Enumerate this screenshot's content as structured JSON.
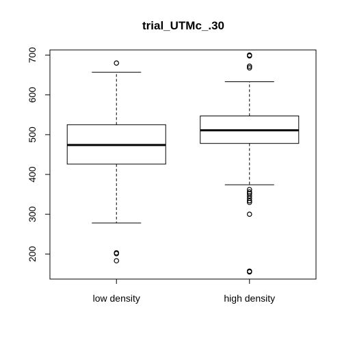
{
  "chart_data": {
    "type": "boxplot",
    "title": "trial_UTMc_.30",
    "xlabel": "",
    "ylabel": "",
    "ylim": [
      137,
      713
    ],
    "yticks": [
      "200",
      "300",
      "400",
      "500",
      "600",
      "700"
    ],
    "categories": [
      "low density",
      "high density"
    ],
    "boxes": [
      {
        "category": "low density",
        "min": 278,
        "q1": 426,
        "median": 474,
        "q3": 525,
        "max": 657,
        "outliers": [
          680,
          203,
          201,
          183
        ]
      },
      {
        "category": "high density",
        "min": 374,
        "q1": 478,
        "median": 511,
        "q3": 547,
        "max": 633,
        "outliers": [
          700,
          698,
          672,
          668,
          362,
          356,
          352,
          346,
          340,
          334,
          330,
          300,
          157,
          155
        ]
      }
    ],
    "grid": false,
    "legend": "none",
    "colors": {
      "stroke": "#000000",
      "background": "#ffffff"
    }
  }
}
